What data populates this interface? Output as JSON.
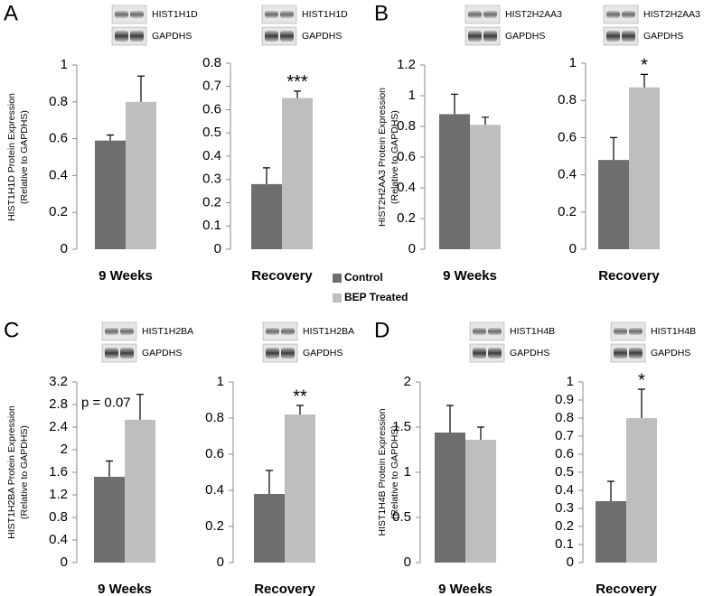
{
  "legend": {
    "series": [
      {
        "name": "Control",
        "color": "#6e6e6e"
      },
      {
        "name": "BEP Treated",
        "color": "#bebebe"
      }
    ]
  },
  "chart_data": [
    {
      "type": "bar",
      "panel": "A",
      "ylabel": [
        "HIST1H1D Protein Expression",
        "(Relative to GAPDHS)"
      ],
      "blot_labels": [
        "HIST1H1D",
        "GAPDHS"
      ],
      "xlabel": "9 Weeks",
      "values": [
        0.59,
        0.8
      ],
      "errors": [
        0.03,
        0.14
      ],
      "ylim": [
        0,
        1
      ],
      "yticks": [
        0,
        0.2,
        0.4,
        0.6,
        0.8,
        1
      ]
    },
    {
      "type": "bar",
      "blot_labels": [
        "HIST1H1D",
        "GAPDHS"
      ],
      "xlabel": "Recovery",
      "values": [
        0.28,
        0.65
      ],
      "errors": [
        0.07,
        0.03
      ],
      "annotation": "***",
      "ylim": [
        0,
        0.8
      ],
      "yticks": [
        0,
        0.1,
        0.2,
        0.3,
        0.4,
        0.5,
        0.6,
        0.7,
        0.8
      ]
    },
    {
      "type": "bar",
      "panel": "B",
      "ylabel": [
        "HIST2H2AA3 Protein Expression",
        "(Relative to GAPDHS)"
      ],
      "blot_labels": [
        "HIST2H2AA3",
        "GAPDHS"
      ],
      "xlabel": "9 Weeks",
      "values": [
        0.88,
        0.81
      ],
      "errors": [
        0.13,
        0.05
      ],
      "ylim": [
        0,
        1.2
      ],
      "yticks": [
        0,
        0.2,
        0.4,
        0.6,
        0.8,
        1,
        1.2
      ]
    },
    {
      "type": "bar",
      "blot_labels": [
        "HIST2H2AA3",
        "GAPDHS"
      ],
      "xlabel": "Recovery",
      "values": [
        0.48,
        0.87
      ],
      "errors": [
        0.12,
        0.07
      ],
      "annotation": "*",
      "ylim": [
        0,
        1
      ],
      "yticks": [
        0,
        0.2,
        0.4,
        0.6,
        0.8,
        1
      ]
    },
    {
      "type": "bar",
      "panel": "C",
      "ylabel": [
        "HIST1H2BA Protein Expression",
        "(Relative to GAPDHS)"
      ],
      "blot_labels": [
        "HIST1H2BA",
        "GAPDHS"
      ],
      "xlabel": "9 Weeks",
      "values": [
        1.52,
        2.53
      ],
      "errors": [
        0.28,
        0.45
      ],
      "annotation": "p = 0.07",
      "ylim": [
        0,
        3.2
      ],
      "yticks": [
        0,
        0.4,
        0.8,
        1.2,
        1.6,
        2,
        2.4,
        2.8,
        3.2
      ]
    },
    {
      "type": "bar",
      "blot_labels": [
        "HIST1H2BA",
        "GAPDHS"
      ],
      "xlabel": "Recovery",
      "values": [
        0.38,
        0.82
      ],
      "errors": [
        0.13,
        0.05
      ],
      "annotation": "**",
      "ylim": [
        0,
        1
      ],
      "yticks": [
        0,
        0.2,
        0.4,
        0.6,
        0.8,
        1
      ]
    },
    {
      "type": "bar",
      "panel": "D",
      "ylabel": [
        "HIST1H4B Protein Expression",
        "(Relative to GAPDHS)"
      ],
      "blot_labels": [
        "HIST1H4B",
        "GAPDHS"
      ],
      "xlabel": "9 Weeks",
      "values": [
        1.44,
        1.36
      ],
      "errors": [
        0.3,
        0.14
      ],
      "ylim": [
        0,
        2
      ],
      "yticks": [
        0,
        0.5,
        1,
        1.5,
        2
      ]
    },
    {
      "type": "bar",
      "blot_labels": [
        "HIST1H4B",
        "GAPDHS"
      ],
      "xlabel": "Recovery",
      "values": [
        0.34,
        0.8
      ],
      "errors": [
        0.11,
        0.16
      ],
      "annotation": "*",
      "ylim": [
        0,
        1
      ],
      "yticks": [
        0,
        0.1,
        0.2,
        0.3,
        0.4,
        0.5,
        0.6,
        0.7,
        0.8,
        0.9,
        1
      ]
    }
  ]
}
